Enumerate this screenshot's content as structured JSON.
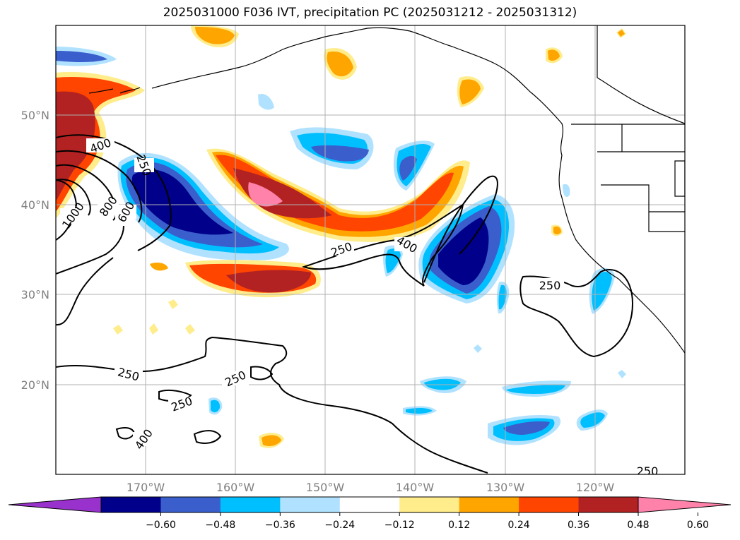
{
  "title": "2025031000 F036 IVT, precipitation PC (2025031212 - 2025031312)",
  "map": {
    "lon_range": [
      -180,
      -110
    ],
    "lat_range": [
      10,
      60
    ],
    "lat_labels": [
      "50°N",
      "40°N",
      "30°N",
      "20°N"
    ],
    "lon_labels": [
      "170°W",
      "160°W",
      "150°W",
      "140°W",
      "130°W",
      "120°W"
    ],
    "contour_levels": [
      "250",
      "400",
      "600",
      "800",
      "1000"
    ],
    "contour_labels": [
      {
        "text": "400"
      },
      {
        "text": "250"
      },
      {
        "text": "800"
      },
      {
        "text": "600"
      },
      {
        "text": "1000"
      },
      {
        "text": "250"
      },
      {
        "text": "400"
      },
      {
        "text": "250"
      },
      {
        "text": "250"
      },
      {
        "text": "250"
      },
      {
        "text": "250"
      },
      {
        "text": "400"
      },
      {
        "text": "250"
      }
    ]
  },
  "colorbar": {
    "ticks": [
      "−0.60",
      "−0.48",
      "−0.36",
      "−0.24",
      "−0.12",
      "0.12",
      "0.24",
      "0.36",
      "0.48",
      "0.60"
    ],
    "colors": [
      "#9932cc",
      "#00008b",
      "#3a5fcd",
      "#00bfff",
      "#b0e2ff",
      "#ffffff",
      "#ffec8b",
      "#ffa500",
      "#ff4500",
      "#b22222",
      "#ff82ab"
    ]
  }
}
